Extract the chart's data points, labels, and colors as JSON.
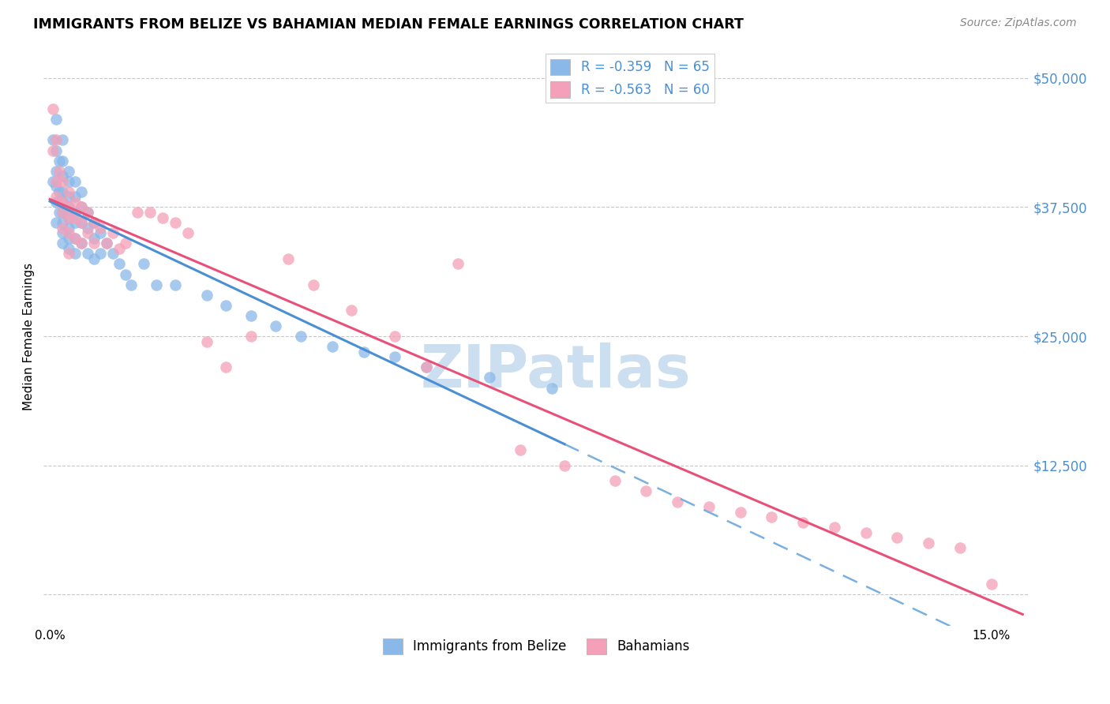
{
  "title": "IMMIGRANTS FROM BELIZE VS BAHAMIAN MEDIAN FEMALE EARNINGS CORRELATION CHART",
  "source": "Source: ZipAtlas.com",
  "ylabel": "Median Female Earnings",
  "x_ticks": [
    0.0,
    0.03,
    0.06,
    0.09,
    0.12,
    0.15
  ],
  "x_tick_labels": [
    "0.0%",
    "",
    "",
    "",
    "",
    "15.0%"
  ],
  "y_ticks": [
    0,
    12500,
    25000,
    37500,
    50000
  ],
  "y_tick_labels": [
    "",
    "$12,500",
    "$25,000",
    "$37,500",
    "$50,000"
  ],
  "xlim": [
    -0.001,
    0.156
  ],
  "ylim": [
    -3000,
    53000
  ],
  "legend_labels": [
    "Immigrants from Belize",
    "Bahamians"
  ],
  "blue_color": "#8ab8e8",
  "pink_color": "#f4a0b8",
  "watermark": "ZIPatlas",
  "watermark_color": "#ccdff0",
  "belize_x": [
    0.0005,
    0.0005,
    0.001,
    0.001,
    0.001,
    0.001,
    0.001,
    0.001,
    0.0015,
    0.0015,
    0.0015,
    0.002,
    0.002,
    0.002,
    0.002,
    0.002,
    0.002,
    0.002,
    0.002,
    0.002,
    0.003,
    0.003,
    0.003,
    0.003,
    0.003,
    0.003,
    0.003,
    0.003,
    0.004,
    0.004,
    0.004,
    0.004,
    0.004,
    0.004,
    0.005,
    0.005,
    0.005,
    0.005,
    0.006,
    0.006,
    0.006,
    0.007,
    0.007,
    0.007,
    0.008,
    0.008,
    0.009,
    0.01,
    0.011,
    0.012,
    0.013,
    0.015,
    0.017,
    0.02,
    0.025,
    0.028,
    0.032,
    0.036,
    0.04,
    0.045,
    0.05,
    0.055,
    0.06,
    0.07,
    0.08
  ],
  "belize_y": [
    40000,
    44000,
    46000,
    43000,
    41000,
    39500,
    38000,
    36000,
    42000,
    39000,
    37000,
    44000,
    42000,
    40500,
    39000,
    38000,
    37000,
    36000,
    35000,
    34000,
    41000,
    40000,
    38500,
    37500,
    36500,
    35500,
    34500,
    33500,
    40000,
    38500,
    37000,
    36000,
    34500,
    33000,
    39000,
    37500,
    36000,
    34000,
    37000,
    35500,
    33000,
    36000,
    34500,
    32500,
    35000,
    33000,
    34000,
    33000,
    32000,
    31000,
    30000,
    32000,
    30000,
    30000,
    29000,
    28000,
    27000,
    26000,
    25000,
    24000,
    23500,
    23000,
    22000,
    21000,
    20000
  ],
  "bahamas_x": [
    0.0005,
    0.0005,
    0.001,
    0.001,
    0.001,
    0.0015,
    0.0015,
    0.002,
    0.002,
    0.002,
    0.002,
    0.003,
    0.003,
    0.003,
    0.003,
    0.003,
    0.004,
    0.004,
    0.004,
    0.005,
    0.005,
    0.005,
    0.006,
    0.006,
    0.007,
    0.007,
    0.008,
    0.009,
    0.01,
    0.011,
    0.012,
    0.014,
    0.016,
    0.018,
    0.02,
    0.022,
    0.025,
    0.028,
    0.032,
    0.038,
    0.042,
    0.048,
    0.055,
    0.06,
    0.065,
    0.075,
    0.082,
    0.09,
    0.095,
    0.1,
    0.105,
    0.11,
    0.115,
    0.12,
    0.125,
    0.13,
    0.135,
    0.14,
    0.145,
    0.15
  ],
  "bahamas_y": [
    47000,
    43000,
    44000,
    40000,
    38500,
    41000,
    38000,
    40000,
    38000,
    37000,
    35500,
    39000,
    37500,
    36500,
    35000,
    33000,
    38000,
    36500,
    34500,
    37500,
    36000,
    34000,
    37000,
    35000,
    36000,
    34000,
    35500,
    34000,
    35000,
    33500,
    34000,
    37000,
    37000,
    36500,
    36000,
    35000,
    24500,
    22000,
    25000,
    32500,
    30000,
    27500,
    25000,
    22000,
    32000,
    14000,
    12500,
    11000,
    10000,
    9000,
    8500,
    8000,
    7500,
    7000,
    6500,
    6000,
    5500,
    5000,
    4500,
    1000
  ]
}
